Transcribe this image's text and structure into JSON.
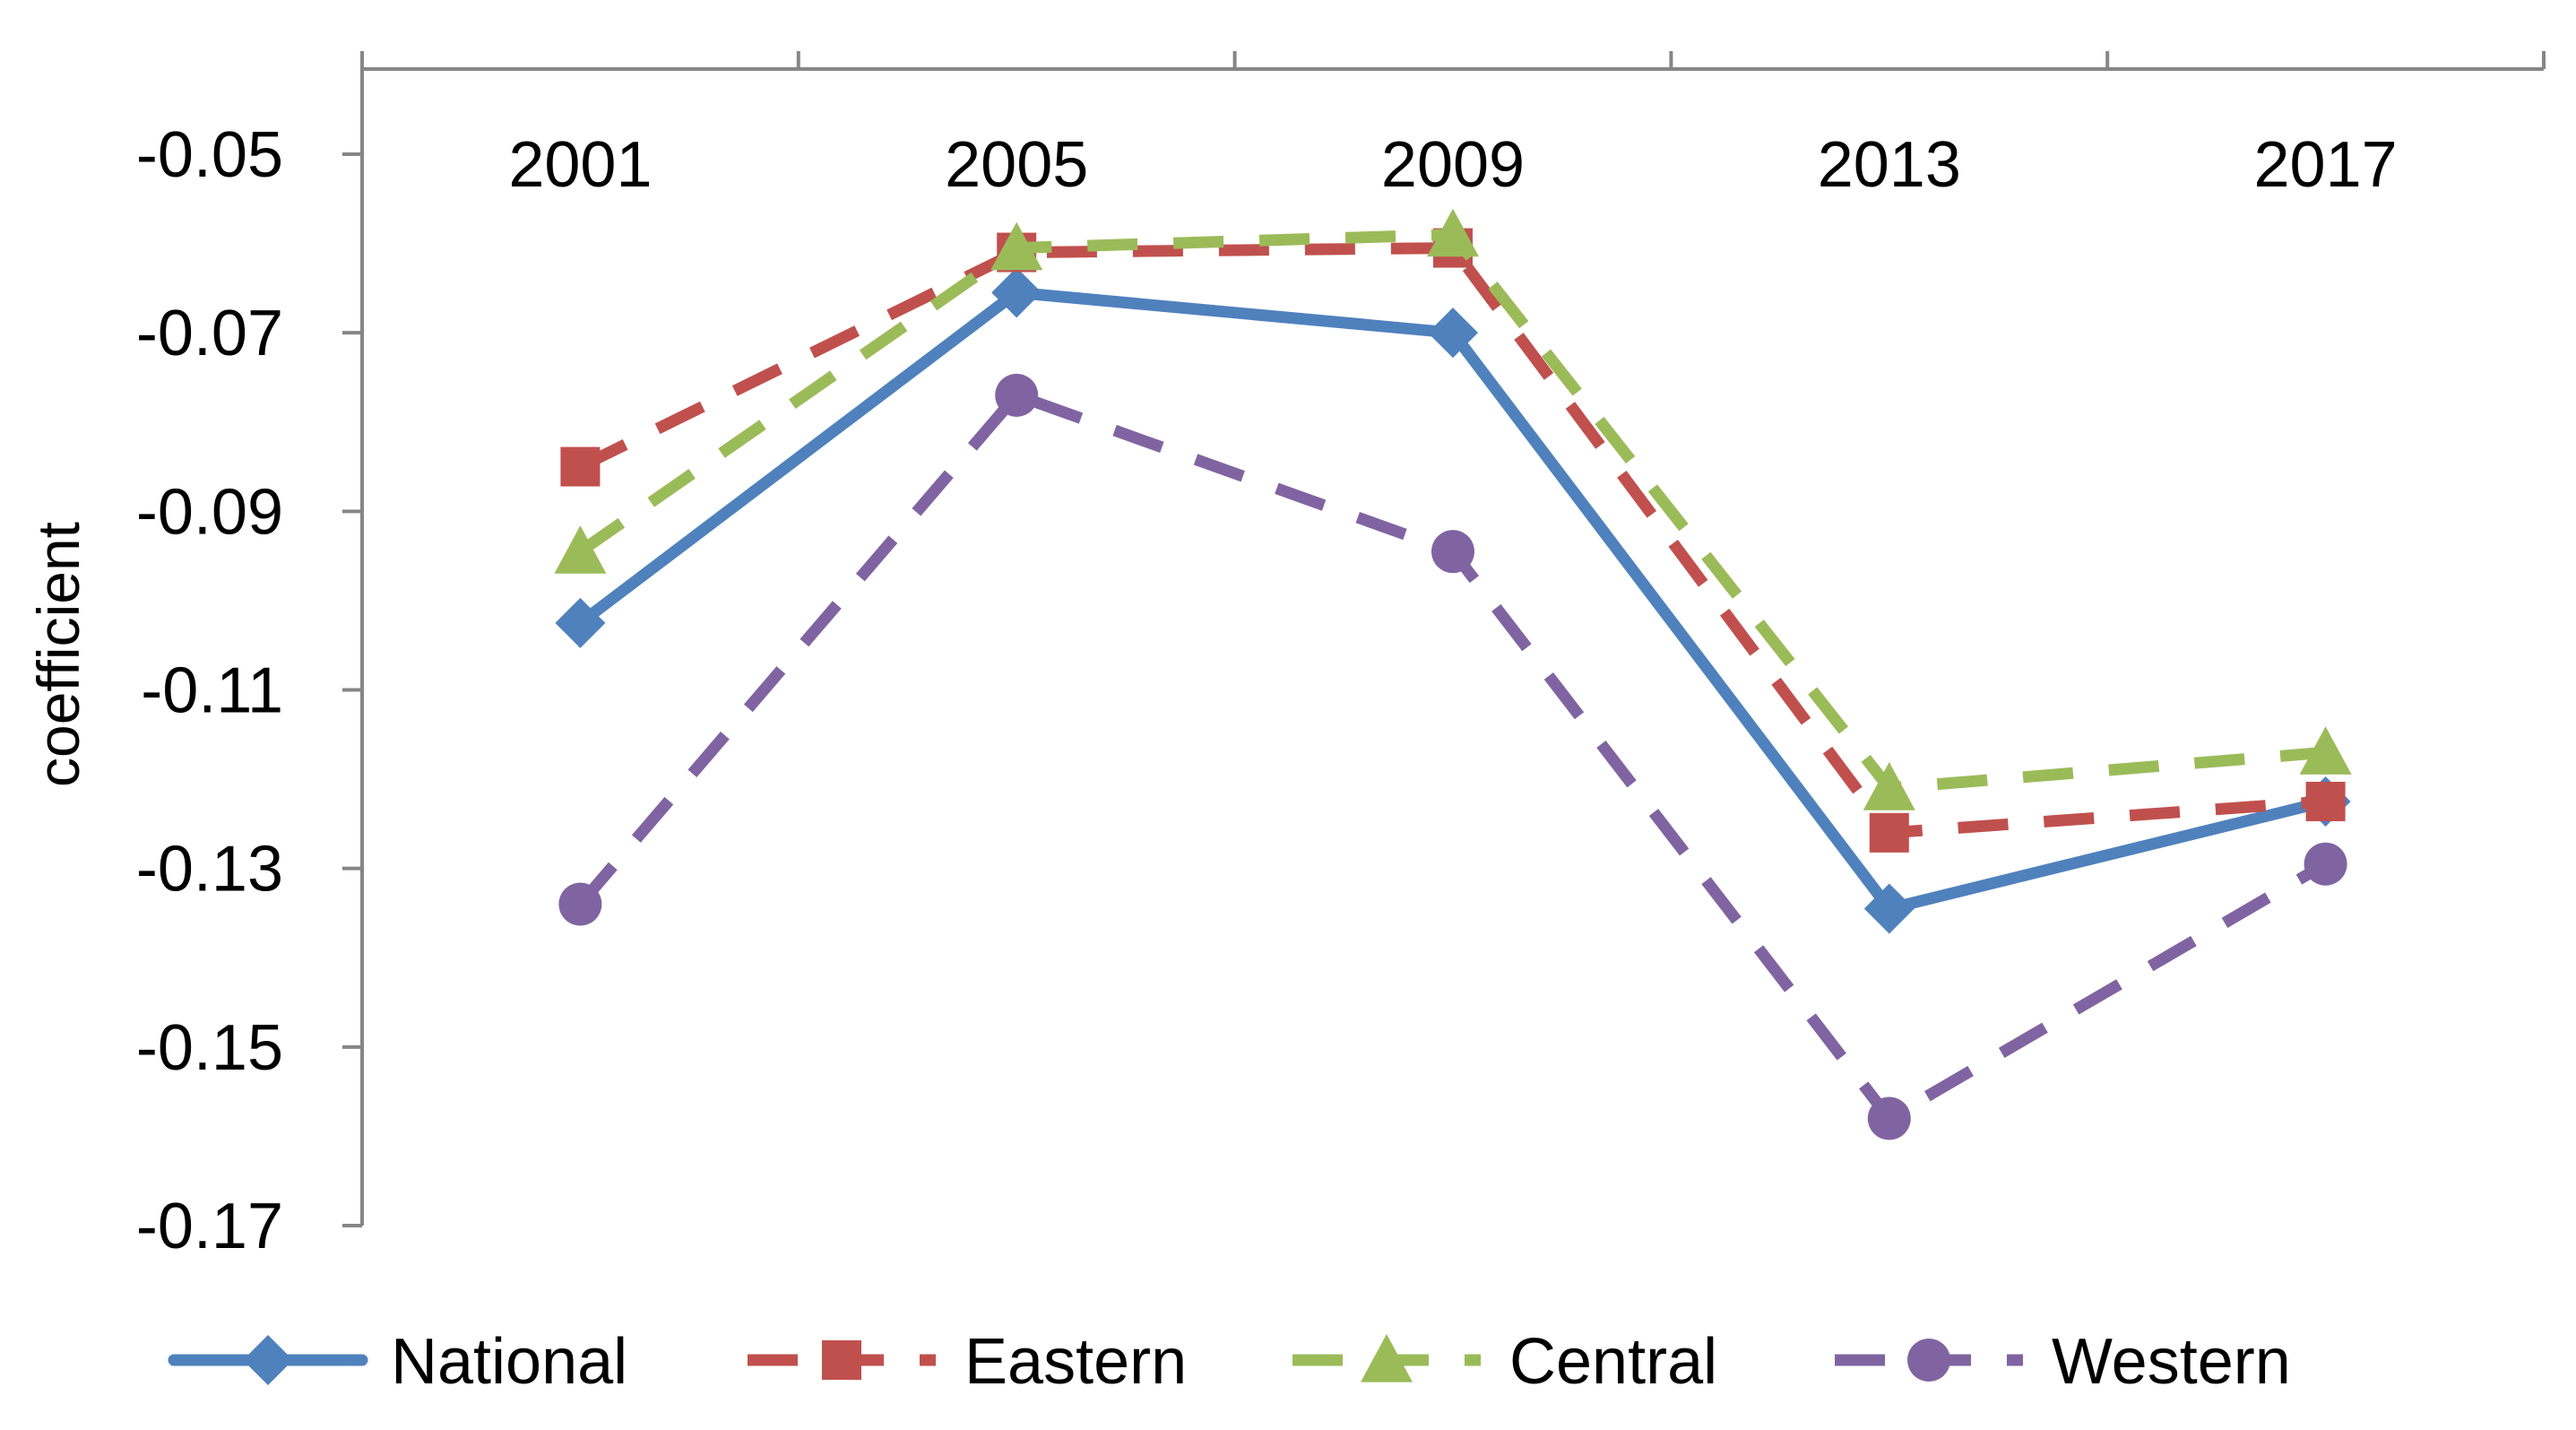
{
  "chart_data": {
    "type": "line",
    "title": "",
    "xlabel": "",
    "ylabel": "coefficient",
    "ylim": [
      -0.17,
      -0.04
    ],
    "y_ticks": [
      -0.05,
      -0.07,
      -0.09,
      -0.11,
      -0.13,
      -0.15,
      -0.17
    ],
    "y_tick_labels": [
      "-0.05",
      "-0.07",
      "-0.09",
      "-0.11",
      "-0.13",
      "-0.15",
      "-0.17"
    ],
    "x_position": "top",
    "grid": false,
    "legend_position": "bottom",
    "categories": [
      "2001",
      "2005",
      "2009",
      "2013",
      "2017"
    ],
    "series": [
      {
        "name": "National",
        "values": [
          -0.1025,
          -0.0655,
          -0.07,
          -0.1345,
          -0.1225
        ],
        "color": "#4F81BD",
        "line_style": "solid",
        "marker": "diamond"
      },
      {
        "name": "Eastern",
        "values": [
          -0.085,
          -0.061,
          -0.0605,
          -0.126,
          -0.1225
        ],
        "color": "#C0504D",
        "line_style": "dashed",
        "marker": "square"
      },
      {
        "name": "Central",
        "values": [
          -0.0945,
          -0.0605,
          -0.059,
          -0.121,
          -0.117
        ],
        "color": "#9BBB59",
        "line_style": "dashed",
        "marker": "triangle"
      },
      {
        "name": "Western",
        "values": [
          -0.134,
          -0.077,
          -0.0945,
          -0.158,
          -0.1295
        ],
        "color": "#8064A2",
        "line_style": "dashed",
        "marker": "circle"
      }
    ]
  }
}
